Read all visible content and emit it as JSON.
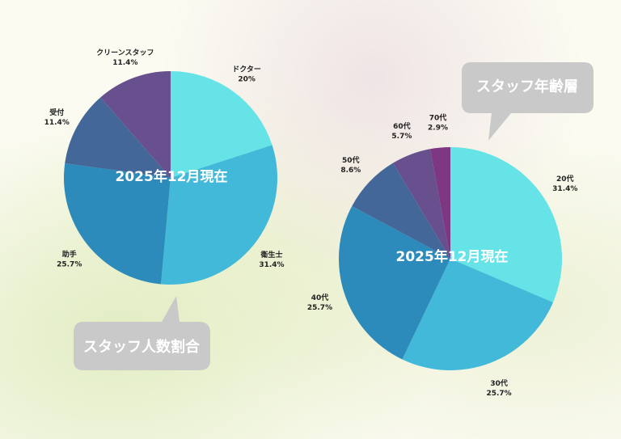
{
  "chart_data": [
    {
      "type": "pie",
      "title": "スタッフ人数割合",
      "center_label": "2025年12月現在",
      "slices": [
        {
          "label": "ドクター",
          "value": 20,
          "value_label": "20%",
          "color": "#66e3e7"
        },
        {
          "label": "衛生士",
          "value": 31.4,
          "value_label": "31.4%",
          "color": "#42b9d8"
        },
        {
          "label": "助手",
          "value": 25.7,
          "value_label": "25.7%",
          "color": "#2c8bbb"
        },
        {
          "label": "受付",
          "value": 11.4,
          "value_label": "11.4%",
          "color": "#44679a"
        },
        {
          "label": "クリーンスタッフ",
          "value": 11.4,
          "value_label": "11.4%",
          "color": "#684f8d"
        }
      ]
    },
    {
      "type": "pie",
      "title": "スタッフ年齢層",
      "center_label": "2025年12月現在",
      "slices": [
        {
          "label": "20代",
          "value": 31.4,
          "value_label": "31.4%",
          "color": "#66e3e7"
        },
        {
          "label": "30代",
          "value": 25.7,
          "value_label": "25.7%",
          "color": "#42b9d8"
        },
        {
          "label": "40代",
          "value": 25.7,
          "value_label": "25.7%",
          "color": "#2c8bbb"
        },
        {
          "label": "50代",
          "value": 8.6,
          "value_label": "8.6%",
          "color": "#44679a"
        },
        {
          "label": "60代",
          "value": 5.7,
          "value_label": "5.7%",
          "color": "#684f8d"
        },
        {
          "label": "70代",
          "value": 2.9,
          "value_label": "2.9%",
          "color": "#7e3883"
        }
      ]
    }
  ],
  "bubble_color": "#c9c9c9"
}
